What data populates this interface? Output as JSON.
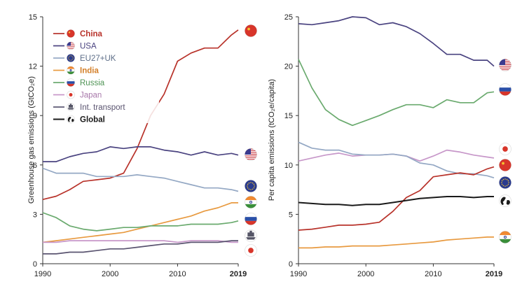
{
  "chart_data": [
    {
      "type": "line",
      "title": "",
      "xlabel": "",
      "ylabel": "Greenhouse gas emissions (GtCO₂e)",
      "xlim": [
        1990,
        2019
      ],
      "ylim": [
        0,
        15
      ],
      "xticks": [
        "1990",
        "2000",
        "2010",
        "2019"
      ],
      "yticks": [
        "0",
        "3",
        "6",
        "9",
        "12",
        "15"
      ],
      "grid": false,
      "legend_position": "top-left",
      "years": [
        1990,
        1992,
        1994,
        1996,
        1998,
        2000,
        2002,
        2004,
        2006,
        2008,
        2010,
        2012,
        2014,
        2016,
        2018,
        2019
      ],
      "series": [
        {
          "name": "China",
          "color": "#b8322a",
          "icon": "china-flag-icon",
          "values": [
            3.9,
            4.1,
            4.5,
            5.0,
            5.1,
            5.2,
            5.5,
            7.0,
            9.0,
            10.3,
            12.3,
            12.8,
            13.1,
            13.1,
            13.9,
            14.2
          ]
        },
        {
          "name": "USA",
          "color": "#4a4380",
          "icon": "usa-flag-icon",
          "values": [
            6.2,
            6.2,
            6.5,
            6.7,
            6.8,
            7.1,
            7.0,
            7.1,
            7.1,
            6.9,
            6.8,
            6.6,
            6.8,
            6.6,
            6.7,
            6.6
          ]
        },
        {
          "name": "EU27+UK",
          "color": "#94a8c4",
          "icon": "eu-flag-icon",
          "values": [
            5.8,
            5.5,
            5.5,
            5.5,
            5.3,
            5.3,
            5.3,
            5.4,
            5.3,
            5.2,
            5.0,
            4.8,
            4.6,
            4.6,
            4.5,
            4.4
          ]
        },
        {
          "name": "India",
          "color": "#e89a40",
          "icon": "india-flag-icon",
          "values": [
            1.3,
            1.4,
            1.5,
            1.6,
            1.7,
            1.8,
            1.9,
            2.1,
            2.3,
            2.5,
            2.7,
            2.9,
            3.2,
            3.4,
            3.7,
            3.7
          ]
        },
        {
          "name": "Russia",
          "color": "#6aaa6e",
          "icon": "russia-flag-icon",
          "values": [
            3.1,
            2.8,
            2.3,
            2.1,
            2.0,
            2.1,
            2.2,
            2.2,
            2.3,
            2.3,
            2.3,
            2.4,
            2.4,
            2.4,
            2.5,
            2.6
          ]
        },
        {
          "name": "Japan",
          "color": "#c797c9",
          "icon": "japan-flag-icon",
          "values": [
            1.3,
            1.3,
            1.4,
            1.4,
            1.4,
            1.4,
            1.4,
            1.4,
            1.4,
            1.4,
            1.3,
            1.4,
            1.4,
            1.4,
            1.3,
            1.3
          ]
        },
        {
          "name": "Int. transport",
          "color": "#5a5470",
          "icon": "ship-icon",
          "values": [
            0.6,
            0.6,
            0.7,
            0.7,
            0.8,
            0.9,
            0.9,
            1.0,
            1.1,
            1.2,
            1.2,
            1.3,
            1.3,
            1.3,
            1.4,
            1.4
          ]
        },
        {
          "name": "Global",
          "color": "#1a1a1a",
          "icon": "globe-icon",
          "values": null
        }
      ]
    },
    {
      "type": "line",
      "title": "",
      "xlabel": "",
      "ylabel": "Per capita emissions (tCO₂e/capita)",
      "xlim": [
        1990,
        2019
      ],
      "ylim": [
        0,
        25
      ],
      "xticks": [
        "1990",
        "2000",
        "2010",
        "2019"
      ],
      "yticks": [
        "0",
        "5",
        "10",
        "15",
        "20",
        "25"
      ],
      "grid": false,
      "years": [
        1990,
        1992,
        1994,
        1996,
        1998,
        2000,
        2002,
        2004,
        2006,
        2008,
        2010,
        2012,
        2014,
        2016,
        2018,
        2019
      ],
      "series": [
        {
          "name": "USA",
          "color": "#4a4380",
          "icon": "usa-flag-icon",
          "values": [
            24.3,
            24.2,
            24.4,
            24.6,
            25.0,
            24.9,
            24.2,
            24.4,
            24.0,
            23.3,
            22.3,
            21.2,
            21.2,
            20.6,
            20.6,
            20.0
          ]
        },
        {
          "name": "Russia",
          "color": "#6aaa6e",
          "icon": "russia-flag-icon",
          "values": [
            20.7,
            17.8,
            15.6,
            14.6,
            14.0,
            14.5,
            15.0,
            15.6,
            16.1,
            16.1,
            15.8,
            16.6,
            16.3,
            16.3,
            17.3,
            17.4
          ]
        },
        {
          "name": "Japan",
          "color": "#c797c9",
          "icon": "japan-flag-icon",
          "values": [
            10.4,
            10.7,
            11.0,
            11.2,
            10.9,
            11.0,
            11.0,
            11.1,
            10.9,
            10.4,
            10.9,
            11.5,
            11.3,
            11.0,
            10.8,
            10.7
          ]
        },
        {
          "name": "EU27+UK",
          "color": "#94a8c4",
          "icon": "eu-flag-icon",
          "values": [
            12.3,
            11.7,
            11.5,
            11.5,
            11.1,
            11.0,
            11.0,
            11.1,
            10.9,
            10.2,
            10.0,
            9.4,
            9.1,
            9.1,
            8.9,
            8.7
          ]
        },
        {
          "name": "China",
          "color": "#b8322a",
          "icon": "china-flag-icon",
          "values": [
            3.4,
            3.5,
            3.7,
            3.9,
            3.9,
            4.0,
            4.2,
            5.3,
            6.7,
            7.4,
            8.8,
            9.0,
            9.2,
            9.0,
            9.6,
            9.8
          ]
        },
        {
          "name": "Global",
          "color": "#1a1a1a",
          "icon": "globe-icon",
          "values": [
            6.2,
            6.1,
            6.0,
            6.0,
            5.9,
            6.0,
            6.0,
            6.2,
            6.4,
            6.6,
            6.7,
            6.8,
            6.8,
            6.7,
            6.8,
            6.8
          ]
        },
        {
          "name": "India",
          "color": "#e89a40",
          "icon": "india-flag-icon",
          "values": [
            1.6,
            1.6,
            1.7,
            1.7,
            1.8,
            1.8,
            1.8,
            1.9,
            2.0,
            2.1,
            2.2,
            2.4,
            2.5,
            2.6,
            2.7,
            2.7
          ]
        }
      ]
    }
  ]
}
